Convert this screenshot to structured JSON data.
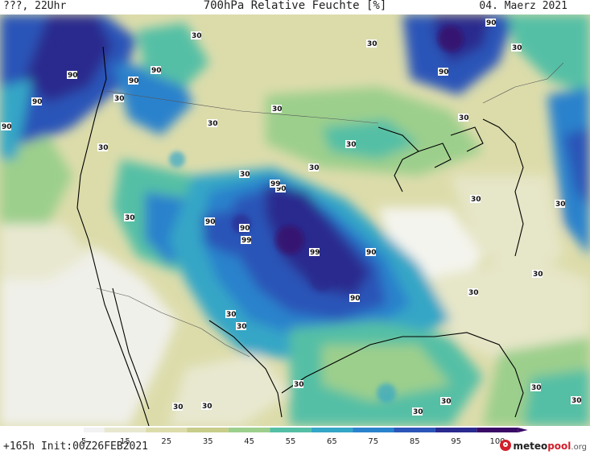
{
  "header": {
    "left": "???, 22Uhr",
    "title": "700hPa Relative Feuchte [%]",
    "date": "04. Maerz 2021"
  },
  "footer": {
    "run_info": "+165h  Init:00Z26FEB2021"
  },
  "logo": {
    "name_a": "meteo",
    "name_b": "pool",
    "tld": ".org"
  },
  "legend": {
    "ticks": [
      "5",
      "15",
      "25",
      "35",
      "45",
      "55",
      "65",
      "75",
      "85",
      "95",
      "100"
    ],
    "colors": [
      "#f2f2f2",
      "#e8e8d0",
      "#dcdcab",
      "#c8cd8a",
      "#9ccf8c",
      "#55bfa5",
      "#34a6c6",
      "#2a82cc",
      "#2b55b8",
      "#2a2a8e",
      "#3a0a66"
    ]
  },
  "contour_labels": [
    "30",
    "30",
    "30",
    "30",
    "30",
    "30",
    "30",
    "30",
    "30",
    "30",
    "30",
    "30",
    "30",
    "30",
    "30",
    "30",
    "30",
    "30",
    "30",
    "30",
    "30",
    "30",
    "30",
    "30",
    "30",
    "90",
    "90",
    "90",
    "90",
    "90",
    "90",
    "90",
    "90",
    "90",
    "90",
    "90",
    "90",
    "99",
    "99",
    "99"
  ]
}
